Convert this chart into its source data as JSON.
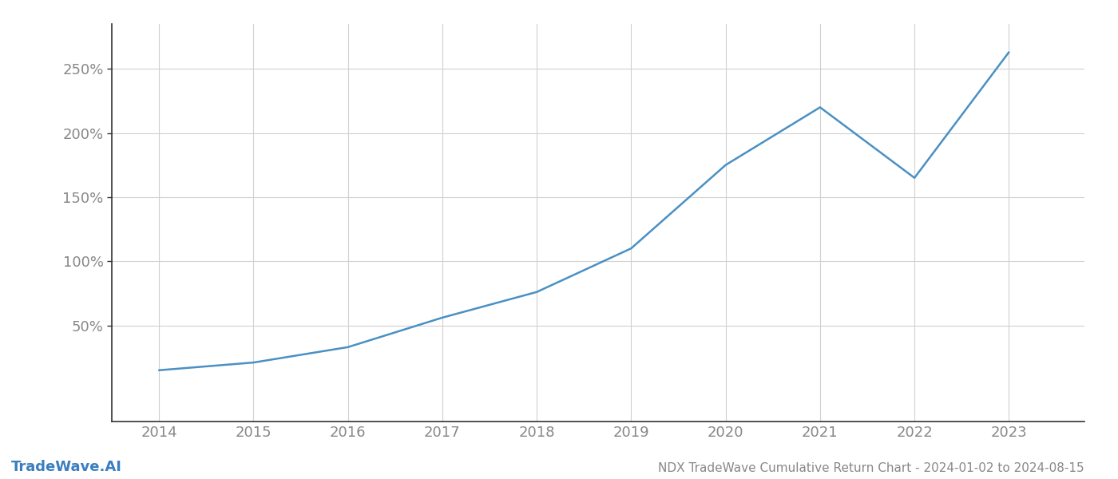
{
  "title": "NDX TradeWave Cumulative Return Chart - 2024-01-02 to 2024-08-15",
  "watermark": "TradeWave.AI",
  "line_color": "#4a90c4",
  "background_color": "#ffffff",
  "grid_color": "#d0d0d0",
  "x_values": [
    2014,
    2015,
    2016,
    2017,
    2018,
    2019,
    2020,
    2021,
    2022,
    2023
  ],
  "y_values": [
    15,
    21,
    33,
    56,
    76,
    110,
    175,
    220,
    165,
    263
  ],
  "xlim": [
    2013.5,
    2023.8
  ],
  "ylim": [
    -25,
    285
  ],
  "yticks": [
    50,
    100,
    150,
    200,
    250
  ],
  "xticks": [
    2014,
    2015,
    2016,
    2017,
    2018,
    2019,
    2020,
    2021,
    2022,
    2023
  ],
  "title_fontsize": 11,
  "tick_fontsize": 13,
  "watermark_fontsize": 13,
  "line_width": 1.8,
  "spine_color": "#333333",
  "tick_color": "#888888"
}
